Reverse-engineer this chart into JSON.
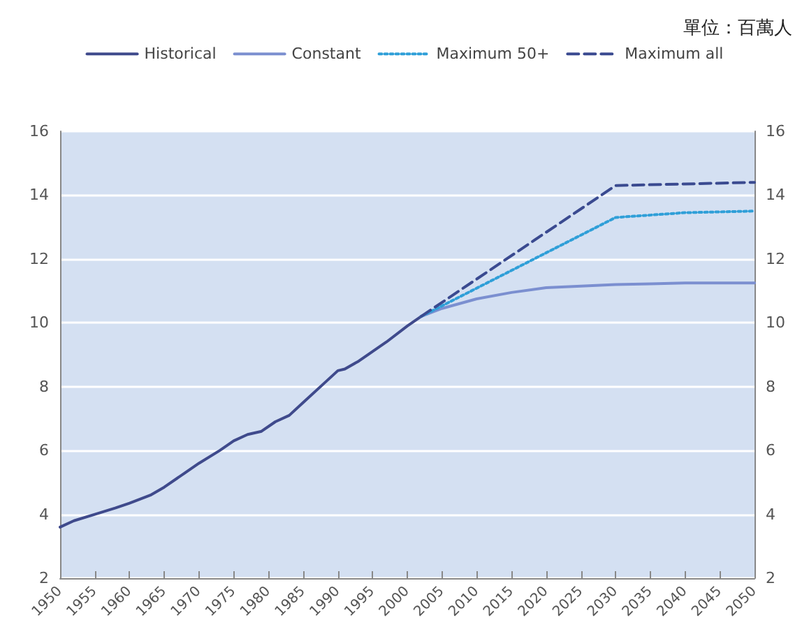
{
  "chart_data": {
    "type": "line",
    "annotations": [
      "單位：百萬人"
    ],
    "xlim": [
      1950,
      2050
    ],
    "xticks": [
      1950,
      1955,
      1960,
      1965,
      1970,
      1975,
      1980,
      1985,
      1990,
      1995,
      2000,
      2005,
      2010,
      2015,
      2020,
      2025,
      2030,
      2035,
      2040,
      2045,
      2050
    ],
    "ylim": [
      2,
      16
    ],
    "yticks": [
      2,
      4,
      6,
      8,
      10,
      12,
      14,
      16
    ],
    "y2lim": [
      2,
      16
    ],
    "y2ticks": [
      2,
      4,
      6,
      8,
      10,
      12,
      14,
      16
    ],
    "grid": "y",
    "legend": "top",
    "marker": "none",
    "series": [
      {
        "name": "Historical",
        "color": "#3f4a8c",
        "line_style": "solid",
        "x": [
          1950,
          1952,
          1955,
          1958,
          1960,
          1963,
          1965,
          1968,
          1970,
          1973,
          1975,
          1977,
          1979,
          1981,
          1983,
          1985,
          1988,
          1990,
          1991,
          1993,
          1995,
          1997,
          2000,
          2002
        ],
        "values": [
          3.6,
          3.8,
          4.0,
          4.2,
          4.35,
          4.6,
          4.85,
          5.3,
          5.6,
          6.0,
          6.3,
          6.5,
          6.6,
          6.9,
          7.1,
          7.5,
          8.1,
          8.5,
          8.55,
          8.8,
          9.1,
          9.4,
          9.9,
          10.2
        ]
      },
      {
        "name": "Constant",
        "color": "#7b8fd0",
        "line_style": "solid",
        "x": [
          2002,
          2005,
          2010,
          2015,
          2020,
          2025,
          2030,
          2035,
          2040,
          2045,
          2050
        ],
        "values": [
          10.2,
          10.45,
          10.75,
          10.95,
          11.1,
          11.15,
          11.2,
          11.22,
          11.25,
          11.25,
          11.25
        ]
      },
      {
        "name": "Maximum 50+",
        "color": "#2f9fd8",
        "line_style": "dotted",
        "x": [
          2002,
          2030,
          2040,
          2050
        ],
        "values": [
          10.2,
          13.3,
          13.45,
          13.5
        ]
      },
      {
        "name": "Maximum all",
        "color": "#3a4a90",
        "line_style": "dashed",
        "x": [
          2002,
          2030,
          2040,
          2050
        ],
        "values": [
          10.2,
          14.3,
          14.35,
          14.4
        ]
      }
    ]
  }
}
